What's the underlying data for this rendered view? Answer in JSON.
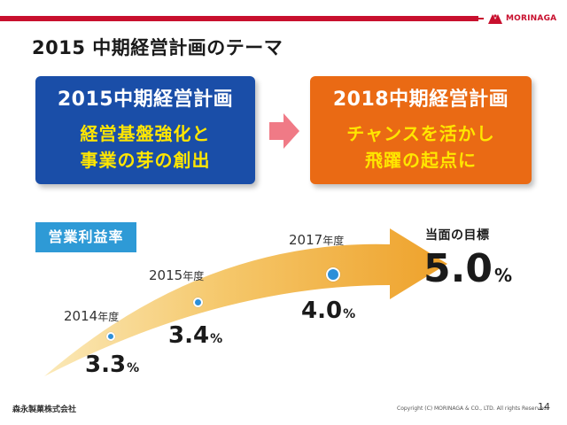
{
  "header": {
    "brand": "MORINAGA",
    "brand_color": "#c8102e",
    "title": "2015 中期経営計画のテーマ"
  },
  "plan_2015": {
    "title": "2015中期経営計画",
    "line1": "経営基盤強化と",
    "line2": "事業の芽の創出",
    "color": "#1a4ea8"
  },
  "plan_2018": {
    "title": "2018中期経営計画",
    "line1": "チャンスを活かし",
    "line2": "飛躍の起点に",
    "color": "#ea6a14"
  },
  "metric": {
    "label": "営業利益率",
    "points": [
      {
        "year": "2014",
        "year_unit": "年度",
        "value": "3.3",
        "unit": "%"
      },
      {
        "year": "2015",
        "year_unit": "年度",
        "value": "3.4",
        "unit": "%"
      },
      {
        "year": "2017",
        "year_unit": "年度",
        "value": "4.0",
        "unit": "%"
      }
    ],
    "target_label": "当面の目標",
    "target_value": "5.0",
    "target_unit": "%"
  },
  "footer": {
    "company": "森永製菓株式会社",
    "copyright": "Copyright (C) MORINAGA & CO., LTD. All rights Reserved.",
    "page": "14"
  }
}
